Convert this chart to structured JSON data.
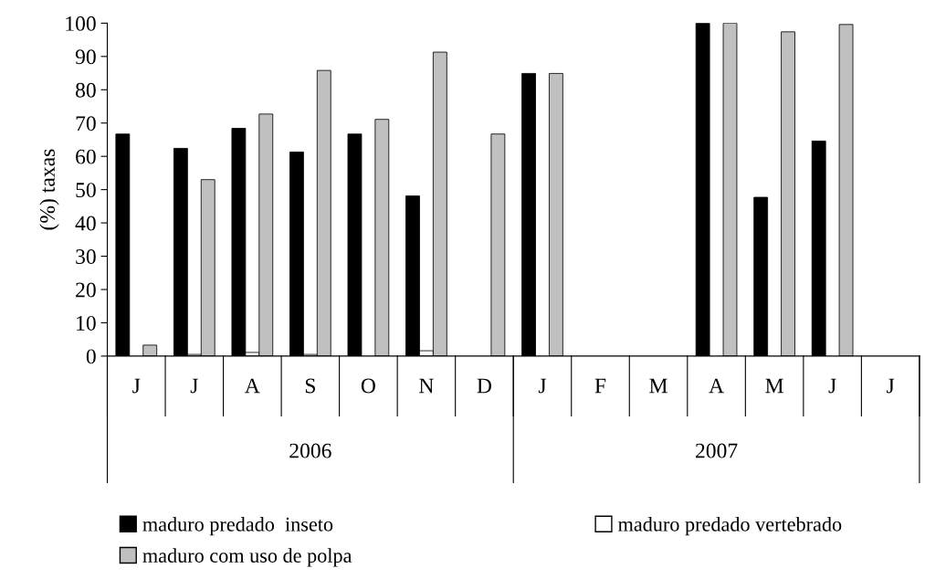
{
  "chart_data": {
    "type": "bar",
    "ylabel": "(%) taxas",
    "categories": [
      "J",
      "J",
      "A",
      "S",
      "O",
      "N",
      "D",
      "J",
      "F",
      "M",
      "A",
      "M",
      "J",
      "J"
    ],
    "series": [
      {
        "name": "maduro predado  inseto",
        "color": "#000000",
        "values": [
          66.7,
          62.4,
          68.4,
          61.3,
          66.7,
          48.1,
          null,
          84.9,
          null,
          null,
          100,
          47.7,
          64.6,
          null
        ]
      },
      {
        "name": "maduro predado vertebrado",
        "color": "#ffffff",
        "values": [
          null,
          0.5,
          1.1,
          0.5,
          null,
          1.6,
          null,
          null,
          null,
          null,
          null,
          null,
          null,
          null
        ]
      },
      {
        "name": "maduro com uso de polpa",
        "color": "#c0c0c0",
        "values": [
          3.3,
          53.0,
          72.7,
          85.8,
          71.1,
          91.3,
          66.7,
          84.9,
          null,
          null,
          100,
          97.4,
          99.6,
          null
        ]
      }
    ],
    "ylim": [
      0,
      100
    ],
    "yticks": [
      0,
      10,
      20,
      30,
      40,
      50,
      60,
      70,
      80,
      90,
      100
    ],
    "annotations": [
      "2006",
      "2007"
    ],
    "legend": "bottom",
    "grid": false
  }
}
